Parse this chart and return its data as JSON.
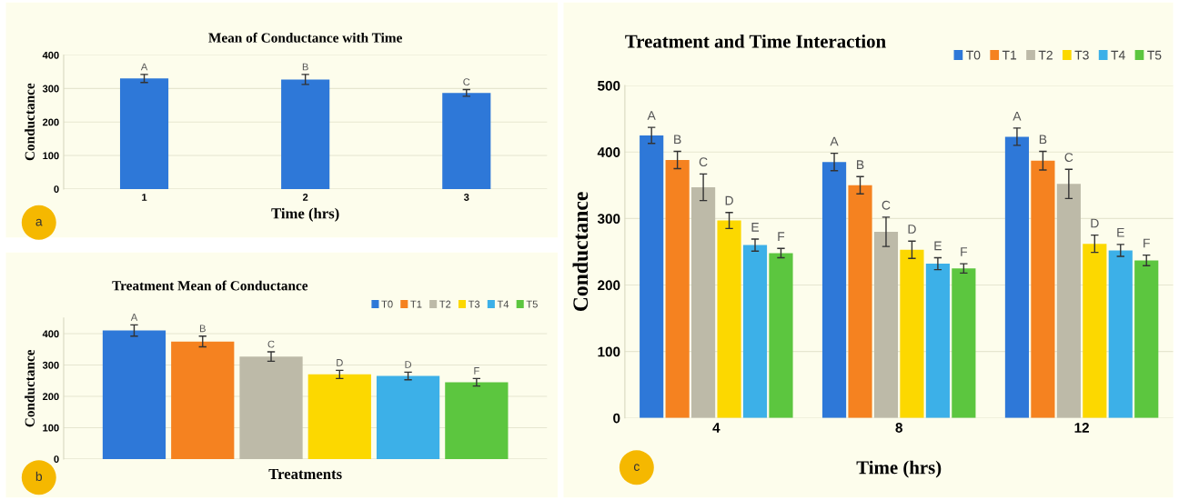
{
  "chart_data": [
    {
      "type": "bar",
      "title": "Mean of Conductance with Time",
      "xlabel": "Time (hrs)",
      "ylabel": "Conductance",
      "categories": [
        "1",
        "2",
        "3"
      ],
      "ylim": [
        0,
        400
      ],
      "yticks": [
        0,
        100,
        200,
        300,
        400
      ],
      "grid": "y",
      "legend": false,
      "series": [
        {
          "color": "#2e78d8",
          "values": [
            330,
            327,
            287
          ],
          "errors": [
            12,
            15,
            10
          ],
          "value_labels": [
            "A",
            "B",
            "C"
          ]
        }
      ],
      "annotations": [
        "a"
      ]
    },
    {
      "type": "bar",
      "title": "Treatment Mean of Conductance",
      "xlabel": "Treatments",
      "ylabel": "Conductance",
      "categories": [
        null
      ],
      "ylim": [
        0,
        450
      ],
      "yticks": [
        0,
        100,
        200,
        300,
        400
      ],
      "grid": "y",
      "legend": "top right",
      "series": [
        {
          "name": "T0",
          "color": "#2e78d8",
          "values": [
            410
          ],
          "errors": [
            18
          ],
          "value_labels": [
            "A"
          ]
        },
        {
          "name": "T1",
          "color": "#f58220",
          "values": [
            375
          ],
          "errors": [
            17
          ],
          "value_labels": [
            "B"
          ]
        },
        {
          "name": "T2",
          "color": "#bdbaa8",
          "values": [
            327
          ],
          "errors": [
            15
          ],
          "value_labels": [
            "C"
          ]
        },
        {
          "name": "T3",
          "color": "#fcd800",
          "values": [
            270
          ],
          "errors": [
            13
          ],
          "value_labels": [
            "D"
          ]
        },
        {
          "name": "T4",
          "color": "#3cb0e8",
          "values": [
            265
          ],
          "errors": [
            12
          ],
          "value_labels": [
            "D"
          ]
        },
        {
          "name": "T5",
          "color": "#5cc63f",
          "values": [
            245
          ],
          "errors": [
            12
          ],
          "value_labels": [
            "F"
          ]
        }
      ],
      "annotations": [
        "b"
      ]
    },
    {
      "type": "bar",
      "title": "Treatment and Time Interaction",
      "xlabel": "Time (hrs)",
      "ylabel": "Conductance",
      "categories": [
        "4",
        "8",
        "12"
      ],
      "ylim": [
        0,
        500
      ],
      "yticks": [
        0,
        100,
        200,
        300,
        400,
        500
      ],
      "grid": "y",
      "legend": "top right",
      "series": [
        {
          "name": "T0",
          "color": "#2e78d8",
          "values": [
            425,
            385,
            423
          ],
          "errors": [
            12,
            13,
            13
          ],
          "value_labels": [
            "A",
            "A",
            "A"
          ]
        },
        {
          "name": "T1",
          "color": "#f58220",
          "values": [
            388,
            350,
            387
          ],
          "errors": [
            13,
            13,
            14
          ],
          "value_labels": [
            "B",
            "B",
            "B"
          ]
        },
        {
          "name": "T2",
          "color": "#bdbaa8",
          "values": [
            347,
            280,
            352
          ],
          "errors": [
            20,
            22,
            22
          ],
          "value_labels": [
            "C",
            "C",
            "C"
          ]
        },
        {
          "name": "T3",
          "color": "#fcd800",
          "values": [
            297,
            253,
            262
          ],
          "errors": [
            12,
            13,
            13
          ],
          "value_labels": [
            "D",
            "D",
            "D"
          ]
        },
        {
          "name": "T4",
          "color": "#3cb0e8",
          "values": [
            260,
            232,
            252
          ],
          "errors": [
            9,
            9,
            9
          ],
          "value_labels": [
            "E",
            "E",
            "E"
          ]
        },
        {
          "name": "T5",
          "color": "#5cc63f",
          "values": [
            248,
            225,
            237
          ],
          "errors": [
            7,
            7,
            8
          ],
          "value_labels": [
            "F",
            "F",
            "F"
          ]
        }
      ],
      "annotations": [
        "c"
      ]
    }
  ]
}
